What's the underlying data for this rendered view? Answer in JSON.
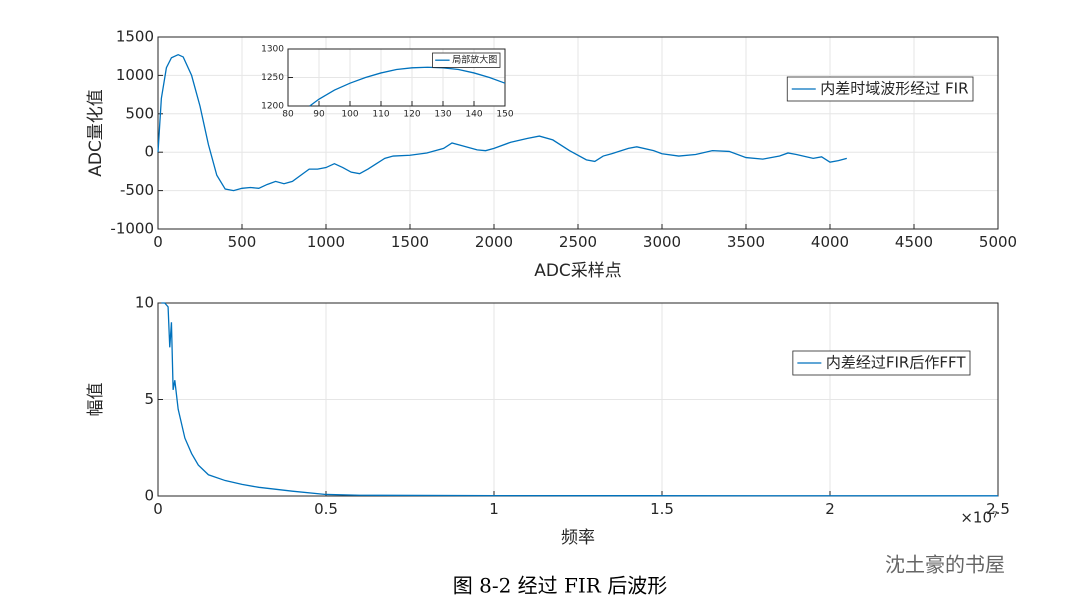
{
  "chart_data": [
    {
      "type": "line",
      "xlabel": "ADC采样点",
      "ylabel": "ADC量化值",
      "xlim": [
        0,
        5000
      ],
      "ylim": [
        -1000,
        1500
      ],
      "xticks": [
        0,
        500,
        1000,
        1500,
        2000,
        2500,
        3000,
        3500,
        4000,
        4500,
        5000
      ],
      "yticks": [
        -1000,
        -500,
        0,
        500,
        1000,
        1500
      ],
      "grid": true,
      "legend": "upper right",
      "series": [
        {
          "name": "内差时域波形经过 FIR",
          "color": "#0072bd",
          "x": [
            0,
            20,
            50,
            80,
            120,
            150,
            200,
            250,
            300,
            350,
            400,
            450,
            500,
            550,
            600,
            650,
            700,
            750,
            800,
            850,
            900,
            950,
            1000,
            1050,
            1100,
            1150,
            1200,
            1250,
            1300,
            1350,
            1400,
            1500,
            1600,
            1700,
            1750,
            1800,
            1900,
            1950,
            2000,
            2100,
            2200,
            2270,
            2350,
            2450,
            2550,
            2600,
            2650,
            2700,
            2800,
            2850,
            2950,
            3000,
            3100,
            3200,
            3300,
            3400,
            3500,
            3600,
            3700,
            3750,
            3800,
            3900,
            3950,
            4000,
            4050,
            4100
          ],
          "values": [
            0,
            700,
            1100,
            1230,
            1270,
            1240,
            1000,
            600,
            100,
            -300,
            -480,
            -500,
            -470,
            -460,
            -470,
            -420,
            -380,
            -410,
            -380,
            -300,
            -220,
            -220,
            -200,
            -150,
            -200,
            -260,
            -280,
            -220,
            -150,
            -80,
            -50,
            -40,
            -10,
            50,
            120,
            90,
            30,
            20,
            50,
            130,
            180,
            210,
            160,
            20,
            -100,
            -120,
            -50,
            -20,
            50,
            70,
            20,
            -20,
            -50,
            -30,
            20,
            10,
            -70,
            -90,
            -50,
            -10,
            -30,
            -80,
            -60,
            -130,
            -110,
            -80
          ]
        }
      ]
    },
    {
      "type": "line",
      "xlim": [
        80,
        150
      ],
      "ylim": [
        1200,
        1300
      ],
      "xticks": [
        80,
        90,
        100,
        110,
        120,
        130,
        140,
        150
      ],
      "yticks": [
        1200,
        1250,
        1300
      ],
      "grid": true,
      "legend": "upper right",
      "series": [
        {
          "name": "局部放大图",
          "color": "#0072bd",
          "x": [
            87,
            90,
            95,
            100,
            105,
            110,
            115,
            120,
            125,
            130,
            135,
            140,
            145,
            150
          ],
          "values": [
            1200,
            1212,
            1228,
            1240,
            1250,
            1258,
            1264,
            1267,
            1268,
            1267,
            1264,
            1258,
            1250,
            1240
          ]
        }
      ]
    },
    {
      "type": "line",
      "xlabel": "频率",
      "ylabel": "幅值",
      "x_multiplier_label": "×10⁷",
      "xlim": [
        0,
        25000000
      ],
      "ylim": [
        0,
        10
      ],
      "xticks": [
        0,
        {
          "value": 5000000,
          "label": "0.5"
        },
        {
          "value": 10000000,
          "label": "1"
        },
        {
          "value": 15000000,
          "label": "1.5"
        },
        {
          "value": 20000000,
          "label": "2"
        },
        {
          "value": 25000000,
          "label": "2.5"
        }
      ],
      "yticks": [
        0,
        5,
        10
      ],
      "grid": true,
      "legend": "upper right",
      "series": [
        {
          "name": "内差经过FIR后作FFT",
          "color": "#0072bd",
          "x": [
            100000,
            200000,
            300000,
            350000,
            400000,
            450000,
            500000,
            600000,
            800000,
            1000000,
            1200000,
            1500000,
            2000000,
            2500000,
            3000000,
            4000000,
            5000000,
            6000000,
            10000000,
            25000000
          ],
          "values": [
            10,
            10,
            9.8,
            7.7,
            9,
            5.5,
            6,
            4.5,
            3,
            2.2,
            1.6,
            1.1,
            0.8,
            0.6,
            0.45,
            0.25,
            0.08,
            0.04,
            0.02,
            0.01
          ]
        }
      ]
    }
  ],
  "caption": "图 8-2 经过 FIR 后波形",
  "watermark": "沈土豪的书屋"
}
